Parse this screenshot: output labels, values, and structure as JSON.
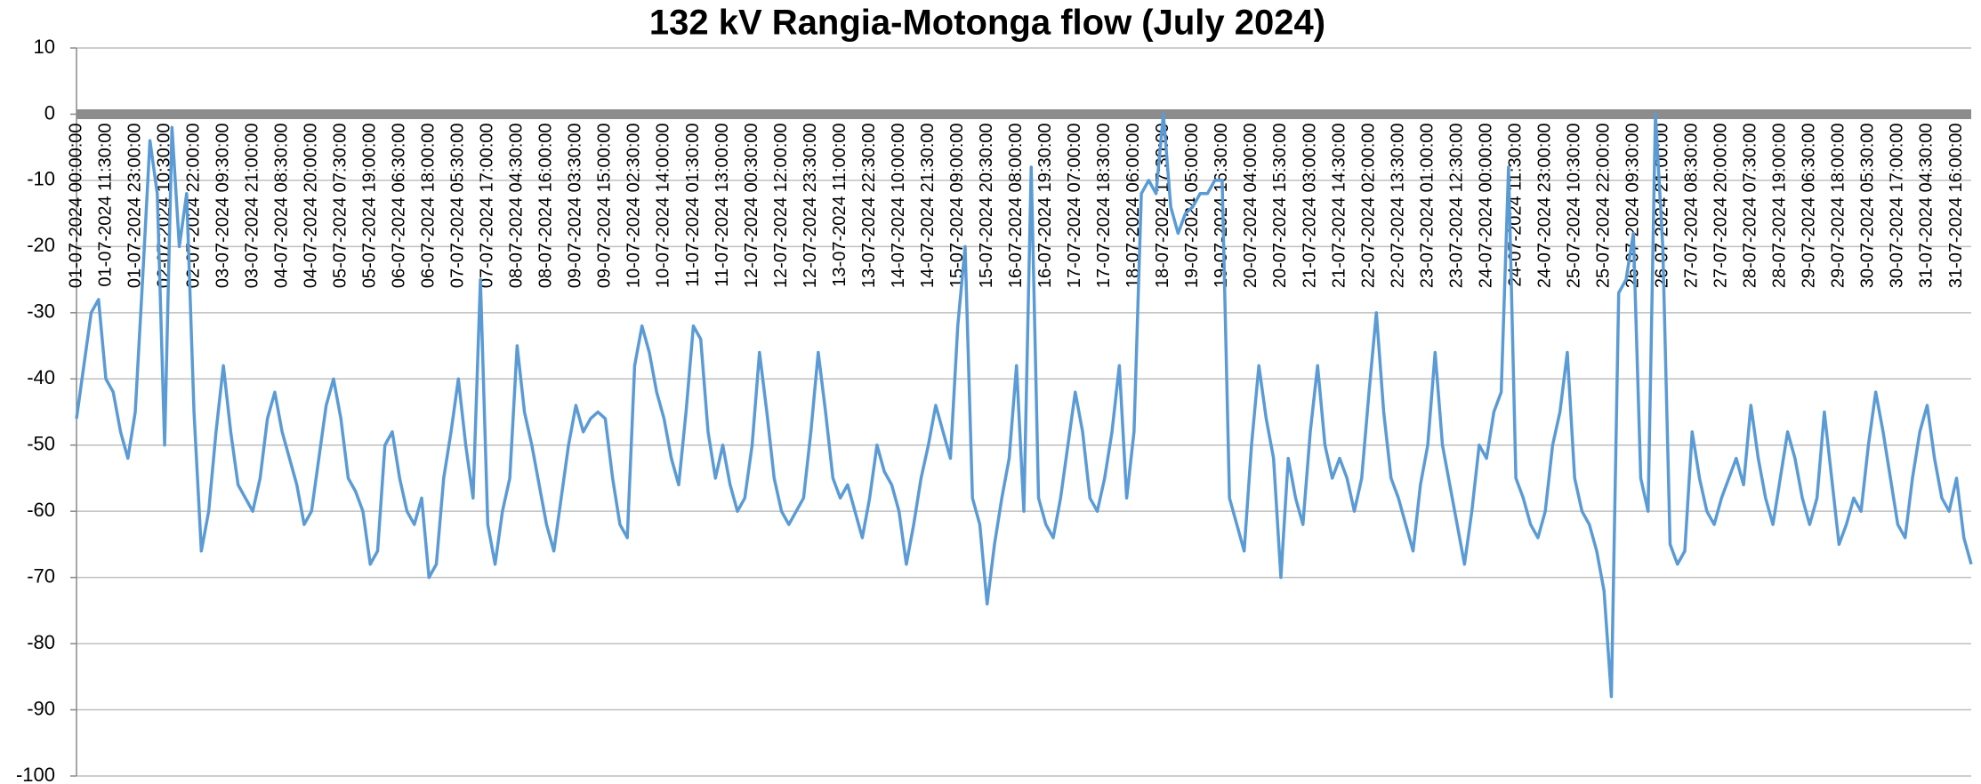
{
  "chart_data": {
    "type": "line",
    "title": "132 kV Rangia-Motonga flow (July 2024)",
    "color": "#5b9bd5",
    "ylim": [
      -100,
      10
    ],
    "yticks": [
      10,
      0,
      -10,
      -20,
      -30,
      -40,
      -50,
      -60,
      -70,
      -80,
      -90,
      -100
    ],
    "grid": true,
    "xaxis_at": 0,
    "categories": [
      "01-07-2024 00:00:00",
      null,
      null,
      null,
      "01-07-2024 11:30:00",
      null,
      null,
      null,
      "01-07-2024 23:00:00",
      null,
      null,
      null,
      "02-07-2024 10:30:00",
      null,
      null,
      null,
      "02-07-2024 22:00:00",
      null,
      null,
      null,
      "03-07-2024 09:30:00",
      null,
      null,
      null,
      "03-07-2024 21:00:00",
      null,
      null,
      null,
      "04-07-2024 08:30:00",
      null,
      null,
      null,
      "04-07-2024 20:00:00",
      null,
      null,
      null,
      "05-07-2024 07:30:00",
      null,
      null,
      null,
      "05-07-2024 19:00:00",
      null,
      null,
      null,
      "06-07-2024 06:30:00",
      null,
      null,
      null,
      "06-07-2024 18:00:00",
      null,
      null,
      null,
      "07-07-2024 05:30:00",
      null,
      null,
      null,
      "07-07-2024 17:00:00",
      null,
      null,
      null,
      "08-07-2024 04:30:00",
      null,
      null,
      null,
      "08-07-2024 16:00:00",
      null,
      null,
      null,
      "09-07-2024 03:30:00",
      null,
      null,
      null,
      "09-07-2024 15:00:00",
      null,
      null,
      null,
      "10-07-2024 02:30:00",
      null,
      null,
      null,
      "10-07-2024 14:00:00",
      null,
      null,
      null,
      "11-07-2024 01:30:00",
      null,
      null,
      null,
      "11-07-2024 13:00:00",
      null,
      null,
      null,
      "12-07-2024 00:30:00",
      null,
      null,
      null,
      "12-07-2024 12:00:00",
      null,
      null,
      null,
      "12-07-2024 23:30:00",
      null,
      null,
      null,
      "13-07-2024 11:00:00",
      null,
      null,
      null,
      "13-07-2024 22:30:00",
      null,
      null,
      null,
      "14-07-2024 10:00:00",
      null,
      null,
      null,
      "14-07-2024 21:30:00",
      null,
      null,
      null,
      "15-07-2024 09:00:00",
      null,
      null,
      null,
      "15-07-2024 20:30:00",
      null,
      null,
      null,
      "16-07-2024 08:00:00",
      null,
      null,
      null,
      "16-07-2024 19:30:00",
      null,
      null,
      null,
      "17-07-2024 07:00:00",
      null,
      null,
      null,
      "17-07-2024 18:30:00",
      null,
      null,
      null,
      "18-07-2024 06:00:00",
      null,
      null,
      null,
      "18-07-2024 17:30:00",
      null,
      null,
      null,
      "19-07-2024 05:00:00",
      null,
      null,
      null,
      "19-07-2024 16:30:00",
      null,
      null,
      null,
      "20-07-2024 04:00:00",
      null,
      null,
      null,
      "20-07-2024 15:30:00",
      null,
      null,
      null,
      "21-07-2024 03:00:00",
      null,
      null,
      null,
      "21-07-2024 14:30:00",
      null,
      null,
      null,
      "22-07-2024 02:00:00",
      null,
      null,
      null,
      "22-07-2024 13:30:00",
      null,
      null,
      null,
      "23-07-2024 01:00:00",
      null,
      null,
      null,
      "23-07-2024 12:30:00",
      null,
      null,
      null,
      "24-07-2024 00:00:00",
      null,
      null,
      null,
      "24-07-2024 11:30:00",
      null,
      null,
      null,
      "24-07-2024 23:00:00",
      null,
      null,
      null,
      "25-07-2024 10:30:00",
      null,
      null,
      null,
      "25-07-2024 22:00:00",
      null,
      null,
      null,
      "26-07-2024 09:30:00",
      null,
      null,
      null,
      "26-07-2024 21:00:00",
      null,
      null,
      null,
      "27-07-2024 08:30:00",
      null,
      null,
      null,
      "27-07-2024 20:00:00",
      null,
      null,
      null,
      "28-07-2024 07:30:00",
      null,
      null,
      null,
      "28-07-2024 19:00:00",
      null,
      null,
      null,
      "29-07-2024 06:30:00",
      null,
      null,
      null,
      "29-07-2024 18:00:00",
      null,
      null,
      null,
      "30-07-2024 05:30:00",
      null,
      null,
      null,
      "30-07-2024 17:00:00",
      null,
      null,
      null,
      "31-07-2024 04:30:00",
      null,
      null,
      null,
      "31-07-2024 16:00:00",
      null,
      null
    ],
    "values": [
      -46,
      -38,
      -30,
      -28,
      -40,
      -42,
      -48,
      -52,
      -45,
      -25,
      -4,
      -12,
      -50,
      -2,
      -20,
      -12,
      -45,
      -66,
      -60,
      -48,
      -38,
      -48,
      -56,
      -58,
      -60,
      -55,
      -46,
      -42,
      -48,
      -52,
      -56,
      -62,
      -60,
      -52,
      -44,
      -40,
      -46,
      -55,
      -57,
      -60,
      -68,
      -66,
      -50,
      -48,
      -55,
      -60,
      -62,
      -58,
      -70,
      -68,
      -55,
      -48,
      -40,
      -50,
      -58,
      -25,
      -62,
      -68,
      -60,
      -55,
      -35,
      -45,
      -50,
      -56,
      -62,
      -66,
      -58,
      -50,
      -44,
      -48,
      -46,
      -45,
      -46,
      -55,
      -62,
      -64,
      -38,
      -32,
      -36,
      -42,
      -46,
      -52,
      -56,
      -45,
      -32,
      -34,
      -48,
      -55,
      -50,
      -56,
      -60,
      -58,
      -50,
      -36,
      -45,
      -55,
      -60,
      -62,
      -60,
      -58,
      -48,
      -36,
      -45,
      -55,
      -58,
      -56,
      -60,
      -64,
      -58,
      -50,
      -54,
      -56,
      -60,
      -68,
      -62,
      -55,
      -50,
      -44,
      -48,
      -52,
      -32,
      -20,
      -58,
      -62,
      -74,
      -65,
      -58,
      -52,
      -38,
      -60,
      -8,
      -58,
      -62,
      -64,
      -58,
      -50,
      -42,
      -48,
      -58,
      -60,
      -55,
      -48,
      -38,
      -58,
      -48,
      -12,
      -10,
      -12,
      0,
      -14,
      -18,
      -15,
      -14,
      -12,
      -12,
      -10,
      -10,
      -58,
      -62,
      -66,
      -50,
      -38,
      -46,
      -52,
      -70,
      -52,
      -58,
      -62,
      -48,
      -38,
      -50,
      -55,
      -52,
      -55,
      -60,
      -55,
      -42,
      -30,
      -45,
      -55,
      -58,
      -62,
      -66,
      -56,
      -50,
      -36,
      -50,
      -56,
      -62,
      -68,
      -60,
      -50,
      -52,
      -45,
      -42,
      -8,
      -55,
      -58,
      -62,
      -64,
      -60,
      -50,
      -45,
      -36,
      -55,
      -60,
      -62,
      -66,
      -72,
      -88,
      -27,
      -25,
      -18,
      -55,
      -60,
      0,
      -20,
      -65,
      -68,
      -66,
      -48,
      -55,
      -60,
      -62,
      -58,
      -55,
      -52,
      -56,
      -44,
      -52,
      -58,
      -62,
      -55,
      -48,
      -52,
      -58,
      -62,
      -58,
      -45,
      -55,
      -65,
      -62,
      -58,
      -60,
      -50,
      -42,
      -48,
      -55,
      -62,
      -64,
      -55,
      -48,
      -44,
      -52,
      -58,
      -60,
      -55,
      -64,
      -68
    ]
  }
}
